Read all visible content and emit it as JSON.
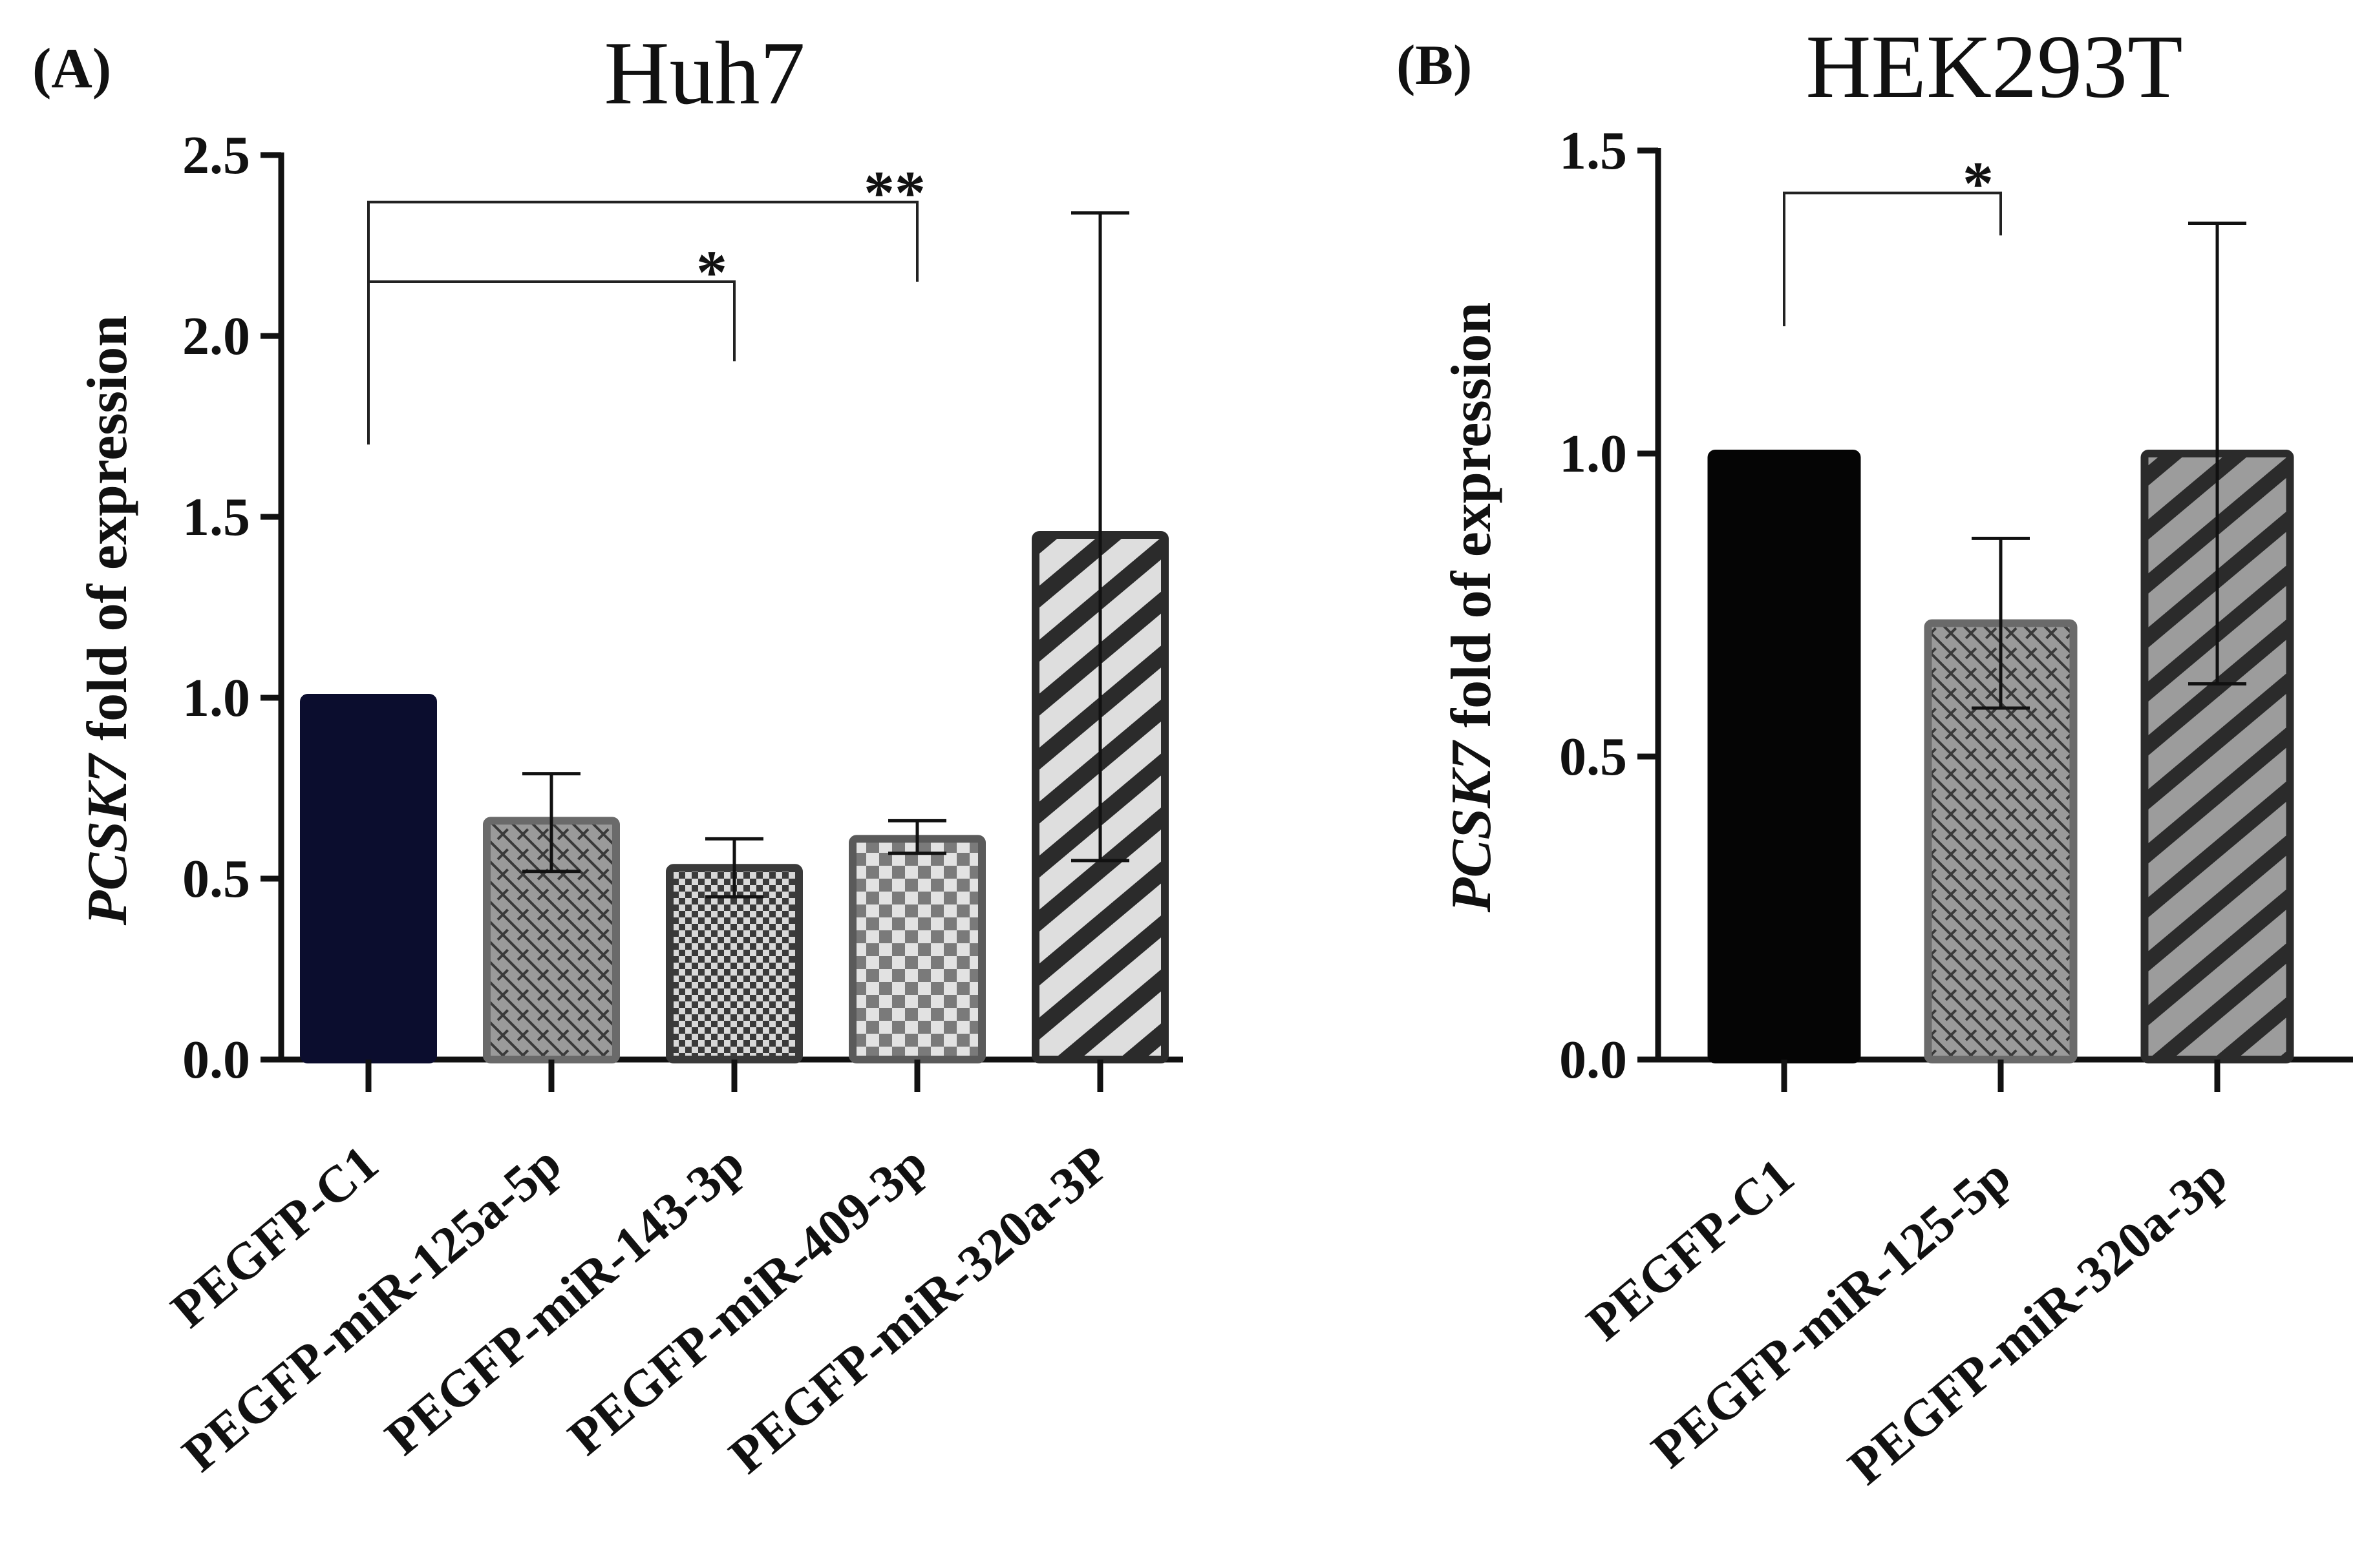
{
  "chart_data": [
    {
      "type": "bar",
      "panel_label": "(A)",
      "title": "Huh7",
      "ylabel_italic": "PCSK7",
      "ylabel_rest": " fold of expression",
      "xlabel": "",
      "ylim": [
        0,
        2.5
      ],
      "yticks": [
        "0.0",
        "0.5",
        "1.0",
        "1.5",
        "2.0",
        "2.5"
      ],
      "categories": [
        "PEGFP-C1",
        "PEGFP-miR-125a-5p",
        "PEGFP-miR-143-3p",
        "PEGFP-miR-409-3p",
        "PEGFP-miR-320a-3P"
      ],
      "values": [
        1.0,
        0.66,
        0.53,
        0.61,
        1.45
      ],
      "errors": [
        {
          "low": null,
          "high": null
        },
        {
          "low": 0.52,
          "high": 0.79
        },
        {
          "low": 0.45,
          "high": 0.61
        },
        {
          "low": 0.57,
          "high": 0.66
        },
        {
          "low": 0.55,
          "high": 2.34
        }
      ],
      "patterns": [
        "solid-navy",
        "brick",
        "fine-check",
        "coarse-check",
        "diagonal"
      ],
      "significance": [
        {
          "from": 0,
          "to": 2,
          "label": "*",
          "y": 2.15,
          "left_drop": 1.7,
          "right_drop": 1.93
        },
        {
          "from": 0,
          "to": 3,
          "label": "**",
          "y": 2.37,
          "left_drop": 1.7,
          "right_drop": 2.15
        }
      ]
    },
    {
      "type": "bar",
      "panel_label": "(B)",
      "title": "HEK293T",
      "ylabel_italic": "PCSK7",
      "ylabel_rest": " fold of expression",
      "xlabel": "",
      "ylim": [
        0,
        1.5
      ],
      "yticks": [
        "0.0",
        "0.5",
        "1.0",
        "1.5"
      ],
      "categories": [
        "PEGFP-C1",
        "PEGFP-miR-125-5p",
        "PEGFP-miR-320a-3p"
      ],
      "values": [
        1.0,
        0.72,
        1.0
      ],
      "errors": [
        {
          "low": null,
          "high": null
        },
        {
          "low": 0.58,
          "high": 0.86
        },
        {
          "low": 0.62,
          "high": 1.38
        }
      ],
      "patterns": [
        "solid-black",
        "brick",
        "diagonal-dark"
      ],
      "significance": [
        {
          "from": 0,
          "to": 1,
          "label": "*",
          "y": 1.43,
          "left_drop": 1.21,
          "right_drop": 1.36
        }
      ]
    }
  ]
}
